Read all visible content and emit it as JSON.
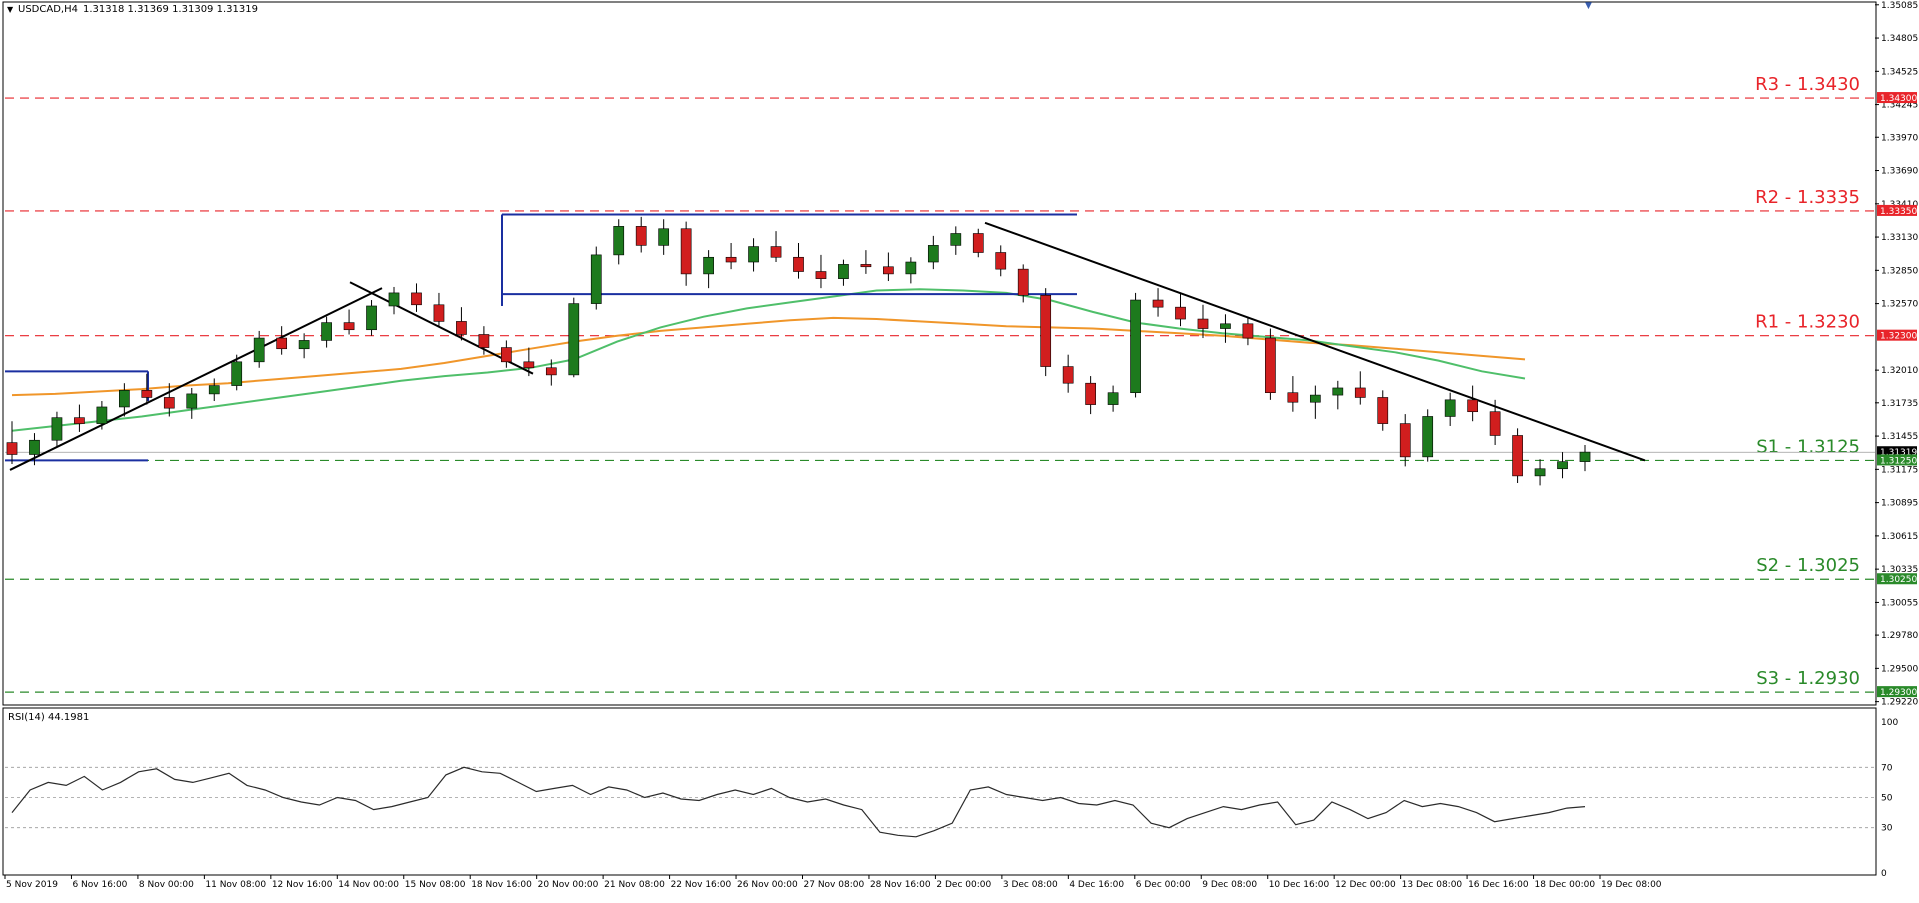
{
  "header": {
    "symbol_timeframe": "USDCAD,H4",
    "ohlc": "1.31318 1.31369 1.31309 1.31319",
    "rsi_label": "RSI(14) 44.1981"
  },
  "colors": {
    "resistance": "#e8242a",
    "support": "#2a8a2a",
    "bull_candle": "#1d7a1d",
    "bear_candle": "#d11e1e",
    "ma_fast": "#4fbf6a",
    "ma_slow": "#f0962a",
    "channel": "#1a2fa0",
    "trendline": "#000000",
    "rsi_line": "#2b2b2b"
  },
  "price_axis_ticks": [
    "1.35085",
    "1.34805",
    "1.34525",
    "1.34245",
    "1.33970",
    "1.33690",
    "1.33410",
    "1.33130",
    "1.32850",
    "1.32570",
    "1.32010",
    "1.31735",
    "1.31455",
    "1.31175",
    "1.30895",
    "1.30615",
    "1.30335",
    "1.30055",
    "1.29780",
    "1.29500",
    "1.29220"
  ],
  "price_axis_tags": [
    {
      "text": "1.34300",
      "kind": "resistance"
    },
    {
      "text": "1.33350",
      "kind": "resistance"
    },
    {
      "text": "1.32300",
      "kind": "resistance"
    },
    {
      "text": "1.31319",
      "kind": "current"
    },
    {
      "text": "1.31250",
      "kind": "support"
    },
    {
      "text": "1.30250",
      "kind": "support"
    },
    {
      "text": "1.29300",
      "kind": "support"
    }
  ],
  "rsi_axis_ticks": [
    "100",
    "70",
    "50",
    "30",
    "0"
  ],
  "time_axis_labels": [
    "5 Nov 2019",
    "6 Nov 16:00",
    "8 Nov 00:00",
    "11 Nov 08:00",
    "12 Nov 16:00",
    "14 Nov 00:00",
    "15 Nov 08:00",
    "18 Nov 16:00",
    "20 Nov 00:00",
    "21 Nov 08:00",
    "22 Nov 16:00",
    "26 Nov 00:00",
    "27 Nov 08:00",
    "28 Nov 16:00",
    "2 Dec 00:00",
    "3 Dec 08:00",
    "4 Dec 16:00",
    "6 Dec 00:00",
    "9 Dec 08:00",
    "10 Dec 16:00",
    "12 Dec 00:00",
    "13 Dec 08:00",
    "16 Dec 16:00",
    "18 Dec 00:00",
    "19 Dec 08:00"
  ],
  "levels": [
    {
      "label": "R3 - 1.3430",
      "price": 1.343,
      "kind": "resistance"
    },
    {
      "label": "R2 - 1.3335",
      "price": 1.3335,
      "kind": "resistance"
    },
    {
      "label": "R1 - 1.3230",
      "price": 1.323,
      "kind": "resistance"
    },
    {
      "label": "S1 - 1.3125",
      "price": 1.3125,
      "kind": "support"
    },
    {
      "label": "S2 - 1.3025",
      "price": 1.3025,
      "kind": "support"
    },
    {
      "label": "S3 - 1.2930",
      "price": 1.293,
      "kind": "support"
    }
  ],
  "chart_data": {
    "type": "candlestick",
    "symbol": "USDCAD",
    "timeframe": "H4",
    "ylim": [
      1.292,
      1.351
    ],
    "rsi_ylim": [
      0,
      100
    ],
    "rsi_guides": [
      70,
      50,
      30
    ],
    "current_price": 1.31319,
    "candles": [
      [
        1.314,
        1.3158,
        1.3122,
        1.313
      ],
      [
        1.313,
        1.3148,
        1.3121,
        1.3142
      ],
      [
        1.3142,
        1.3166,
        1.3137,
        1.3161
      ],
      [
        1.3161,
        1.3172,
        1.3149,
        1.3156
      ],
      [
        1.3156,
        1.3175,
        1.3151,
        1.317
      ],
      [
        1.317,
        1.319,
        1.3162,
        1.3184
      ],
      [
        1.3184,
        1.3198,
        1.3172,
        1.3178
      ],
      [
        1.3178,
        1.319,
        1.3162,
        1.3169
      ],
      [
        1.3169,
        1.3186,
        1.316,
        1.3181
      ],
      [
        1.3181,
        1.3194,
        1.3175,
        1.3188
      ],
      [
        1.3188,
        1.3214,
        1.3184,
        1.3208
      ],
      [
        1.3208,
        1.3234,
        1.3203,
        1.3228
      ],
      [
        1.3228,
        1.3238,
        1.3214,
        1.3219
      ],
      [
        1.3219,
        1.3232,
        1.3211,
        1.3226
      ],
      [
        1.3226,
        1.3246,
        1.322,
        1.3241
      ],
      [
        1.3241,
        1.3252,
        1.3231,
        1.3235
      ],
      [
        1.3235,
        1.326,
        1.323,
        1.3255
      ],
      [
        1.3255,
        1.3271,
        1.3248,
        1.3266
      ],
      [
        1.3266,
        1.3274,
        1.325,
        1.3256
      ],
      [
        1.3256,
        1.3266,
        1.3237,
        1.3242
      ],
      [
        1.3242,
        1.3254,
        1.3226,
        1.3231
      ],
      [
        1.3231,
        1.3238,
        1.3214,
        1.322
      ],
      [
        1.322,
        1.3226,
        1.3203,
        1.3208
      ],
      [
        1.3208,
        1.322,
        1.3196,
        1.3203
      ],
      [
        1.3203,
        1.321,
        1.3188,
        1.3197
      ],
      [
        1.3197,
        1.3262,
        1.3195,
        1.3257
      ],
      [
        1.3257,
        1.3305,
        1.3252,
        1.3298
      ],
      [
        1.3298,
        1.3328,
        1.329,
        1.3322
      ],
      [
        1.3322,
        1.333,
        1.33,
        1.3306
      ],
      [
        1.3306,
        1.3328,
        1.3298,
        1.332
      ],
      [
        1.332,
        1.3326,
        1.3272,
        1.3282
      ],
      [
        1.3282,
        1.3302,
        1.327,
        1.3296
      ],
      [
        1.3296,
        1.3308,
        1.3286,
        1.3292
      ],
      [
        1.3292,
        1.3312,
        1.3284,
        1.3305
      ],
      [
        1.3305,
        1.3318,
        1.3292,
        1.3296
      ],
      [
        1.3296,
        1.3308,
        1.3278,
        1.3284
      ],
      [
        1.3284,
        1.3298,
        1.327,
        1.3278
      ],
      [
        1.3278,
        1.3294,
        1.3272,
        1.329
      ],
      [
        1.329,
        1.3302,
        1.3282,
        1.3288
      ],
      [
        1.3288,
        1.33,
        1.3276,
        1.3282
      ],
      [
        1.3282,
        1.3296,
        1.3274,
        1.3292
      ],
      [
        1.3292,
        1.3314,
        1.3286,
        1.3306
      ],
      [
        1.3306,
        1.3322,
        1.3298,
        1.3316
      ],
      [
        1.3316,
        1.332,
        1.3296,
        1.33
      ],
      [
        1.33,
        1.3306,
        1.328,
        1.3286
      ],
      [
        1.3286,
        1.329,
        1.3258,
        1.3264
      ],
      [
        1.3264,
        1.327,
        1.3196,
        1.3204
      ],
      [
        1.3204,
        1.3214,
        1.3182,
        1.319
      ],
      [
        1.319,
        1.3196,
        1.3164,
        1.3172
      ],
      [
        1.3172,
        1.3188,
        1.3166,
        1.3182
      ],
      [
        1.3182,
        1.3266,
        1.3178,
        1.326
      ],
      [
        1.326,
        1.327,
        1.3246,
        1.3254
      ],
      [
        1.3254,
        1.3266,
        1.3238,
        1.3244
      ],
      [
        1.3244,
        1.3256,
        1.3228,
        1.3236
      ],
      [
        1.3236,
        1.3248,
        1.3224,
        1.324
      ],
      [
        1.324,
        1.3246,
        1.3222,
        1.3228
      ],
      [
        1.3228,
        1.3236,
        1.3176,
        1.3182
      ],
      [
        1.3182,
        1.3196,
        1.3166,
        1.3174
      ],
      [
        1.3174,
        1.3188,
        1.316,
        1.318
      ],
      [
        1.318,
        1.3192,
        1.3168,
        1.3186
      ],
      [
        1.3186,
        1.32,
        1.3172,
        1.3178
      ],
      [
        1.3178,
        1.3184,
        1.315,
        1.3156
      ],
      [
        1.3156,
        1.3164,
        1.312,
        1.3128
      ],
      [
        1.3128,
        1.3168,
        1.3124,
        1.3162
      ],
      [
        1.3162,
        1.3182,
        1.3154,
        1.3176
      ],
      [
        1.3176,
        1.3188,
        1.3158,
        1.3166
      ],
      [
        1.3166,
        1.3176,
        1.3138,
        1.3146
      ],
      [
        1.3146,
        1.3152,
        1.3106,
        1.3112
      ],
      [
        1.3112,
        1.3126,
        1.3104,
        1.3118
      ],
      [
        1.3118,
        1.3132,
        1.311,
        1.3124
      ],
      [
        1.3124,
        1.3138,
        1.3116,
        1.3132
      ]
    ],
    "ma_fast": [
      1.315,
      1.3154,
      1.3158,
      1.3162,
      1.3167,
      1.3172,
      1.3177,
      1.3182,
      1.3187,
      1.3192,
      1.3196,
      1.3199,
      1.3203,
      1.321,
      1.3225,
      1.3237,
      1.3246,
      1.3253,
      1.3258,
      1.3263,
      1.3268,
      1.3269,
      1.3268,
      1.3266,
      1.326,
      1.325,
      1.3241,
      1.3236,
      1.3232,
      1.3229,
      1.3226,
      1.3221,
      1.3216,
      1.3209,
      1.32,
      1.3194
    ],
    "ma_slow": [
      1.318,
      1.3181,
      1.3183,
      1.3185,
      1.3188,
      1.319,
      1.3193,
      1.3196,
      1.3199,
      1.3202,
      1.3207,
      1.3213,
      1.3219,
      1.3225,
      1.323,
      1.3234,
      1.3237,
      1.324,
      1.3243,
      1.3245,
      1.3244,
      1.3242,
      1.324,
      1.3238,
      1.3237,
      1.3236,
      1.3234,
      1.3232,
      1.323,
      1.3227,
      1.3224,
      1.3222,
      1.3219,
      1.3216,
      1.3213,
      1.321
    ],
    "rsi": [
      40,
      55,
      60,
      58,
      64,
      55,
      60,
      67,
      69,
      62,
      60,
      63,
      66,
      58,
      55,
      50,
      47,
      45,
      50,
      48,
      42,
      44,
      47,
      50,
      65,
      70,
      67,
      66,
      60,
      54,
      56,
      58,
      52,
      57,
      55,
      50,
      53,
      49,
      48,
      52,
      55,
      52,
      56,
      50,
      47,
      49,
      45,
      42,
      27,
      25,
      24,
      28,
      33,
      55,
      57,
      52,
      50,
      48,
      50,
      46,
      45,
      48,
      45,
      33,
      30,
      36,
      40,
      44,
      42,
      45,
      47,
      32,
      35,
      47,
      42,
      36,
      40,
      48,
      44,
      46,
      44,
      40,
      34,
      36,
      38,
      40,
      43,
      44
    ]
  }
}
